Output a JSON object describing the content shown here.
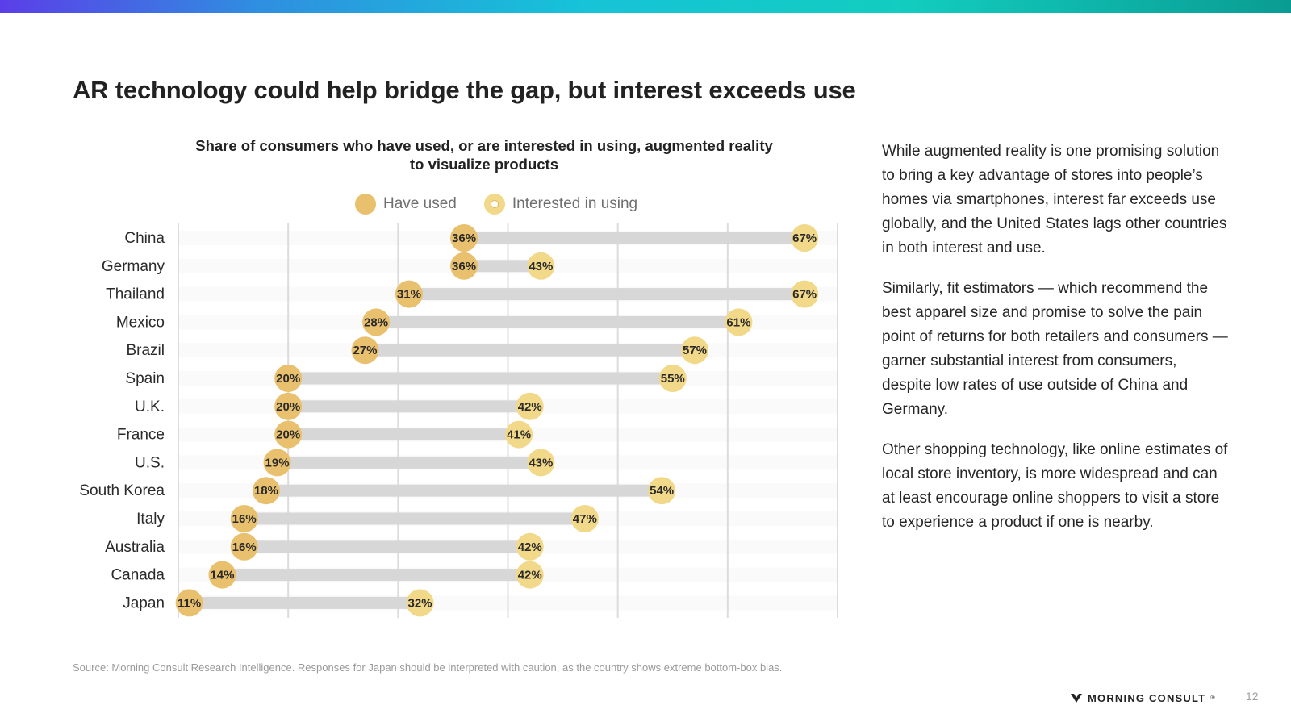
{
  "slide": {
    "title": "AR technology could help bridge the gap, but interest exceeds use",
    "page_number": "12",
    "source": "Source: Morning Consult Research Intelligence. Responses for Japan should be interpreted with caution, as the country shows extreme bottom-box bias.",
    "logo_text": "MORNING CONSULT",
    "logo_mark": "®"
  },
  "side_text": {
    "paragraphs": [
      "While augmented reality is one promising solution to bring a key advantage of stores into people’s homes via smartphones, interest far exceeds use globally, and the United States lags other countries in both interest and use.",
      "Similarly, fit estimators — which recommend the best apparel size and promise to solve the pain point of returns for both retailers and consumers — garner substantial interest from consumers, despite low rates of use outside of China and Germany.",
      "Other shopping technology, like online estimates of local store inventory, is more widespread and can at least encourage online shoppers to visit a store to experience a product if one is nearby."
    ]
  },
  "colors": {
    "have_used": "#e9c06e",
    "interested": "#f2d889",
    "bar": "#d7d7d7",
    "gridline": "#dcdcdc"
  },
  "chart_data": {
    "type": "dumbbell",
    "title": "Share of consumers who have used, or are interested in using, augmented reality to visualize products",
    "legend": [
      "Have used",
      "Interested in using"
    ],
    "xlim": [
      10,
      70
    ],
    "gridlines": [
      10,
      20,
      30,
      40,
      50,
      60,
      70
    ],
    "categories": [
      "China",
      "Germany",
      "Thailand",
      "Mexico",
      "Brazil",
      "Spain",
      "U.K.",
      "France",
      "U.S.",
      "South Korea",
      "Italy",
      "Australia",
      "Canada",
      "Japan"
    ],
    "series": [
      {
        "name": "Have used",
        "values": [
          36,
          36,
          31,
          28,
          27,
          20,
          20,
          20,
          19,
          18,
          16,
          16,
          14,
          11
        ]
      },
      {
        "name": "Interested in using",
        "values": [
          67,
          43,
          67,
          61,
          57,
          55,
          42,
          41,
          43,
          54,
          47,
          42,
          42,
          32
        ]
      }
    ],
    "value_suffix": "%"
  }
}
